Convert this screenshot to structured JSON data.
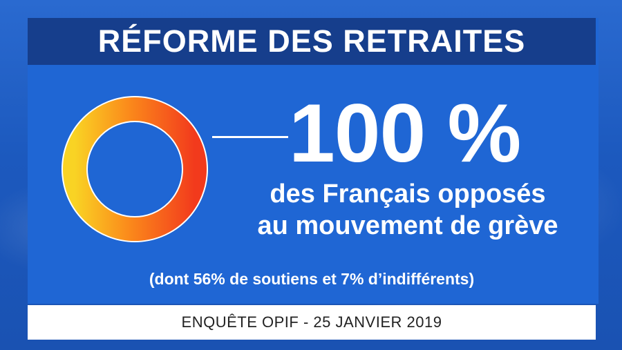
{
  "title": "RÉFORME DES RETRAITES",
  "chart_data": {
    "type": "pie",
    "slices": [
      {
        "value": 100
      }
    ],
    "value_label": "100 %",
    "gradient_colors": [
      "#f9d324",
      "#fb8a1b",
      "#f23a1c"
    ]
  },
  "headline": {
    "line1": "des Français opposés",
    "line2": "au mouvement de grève"
  },
  "note": "(dont 56% de soutiens et 7% d’indifférents)",
  "source": "ENQUÊTE OPIF - 25 JANVIER 2019"
}
